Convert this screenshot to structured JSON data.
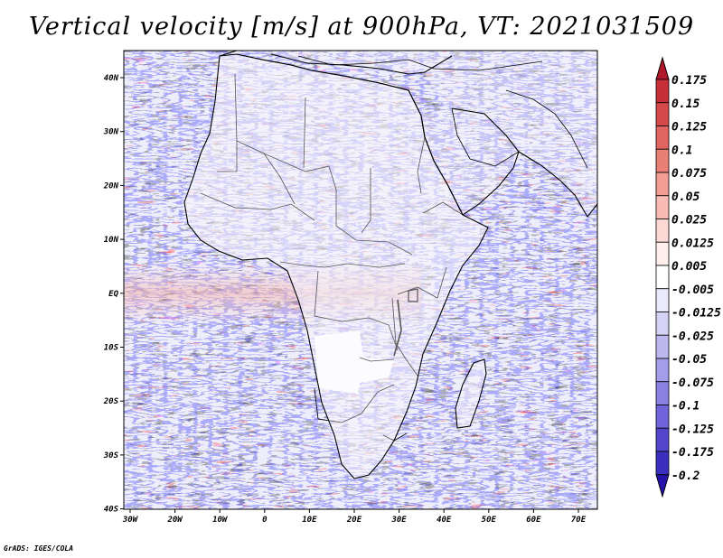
{
  "title": "Vertical velocity [m/s] at 900hPa, VT: 2021031509",
  "credit": "GrADS: IGES/COLA",
  "lon_ticks": [
    "30W",
    "20W",
    "10W",
    "0",
    "10E",
    "20E",
    "30E",
    "40E",
    "50E",
    "60E",
    "70E"
  ],
  "lat_ticks": [
    "40N",
    "30N",
    "20N",
    "10N",
    "EQ",
    "10S",
    "20S",
    "30S",
    "40S"
  ],
  "colorbar": {
    "labels": [
      "0.175",
      "0.15",
      "0.125",
      "0.1",
      "0.075",
      "0.05",
      "0.025",
      "0.0125",
      "0.005",
      "-0.005",
      "-0.0125",
      "-0.025",
      "-0.05",
      "-0.075",
      "-0.1",
      "-0.125",
      "-0.175",
      "-0.2"
    ],
    "colors": [
      "#b2182b",
      "#c62e38",
      "#d6494b",
      "#e0645f",
      "#e98077",
      "#f19d94",
      "#f8bcb5",
      "#fcd9d4",
      "#fff0ee",
      "#ffffff",
      "#ecebfb",
      "#d5d3f5",
      "#bdb9ef",
      "#a39eea",
      "#8a82e3",
      "#6f64da",
      "#5346cc",
      "#3a2fbe",
      "#2414ad"
    ]
  },
  "field": {
    "background": "#eeeefa",
    "land_color": "#f6f4f8",
    "dry_interior_color": "#ffffff",
    "coast_color": "#000000"
  }
}
